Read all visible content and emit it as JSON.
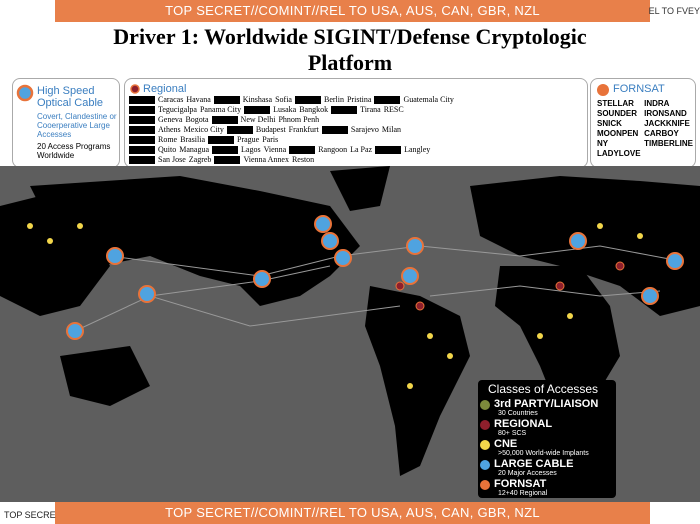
{
  "banner_top": "TOP SECRET//COMINT//REL TO USA, AUS, CAN, GBR, NZL",
  "banner_right": "EL TO FVEY",
  "title": "Driver 1:  Worldwide  SIGINT/Defense  Cryptologic Platform",
  "panels": {
    "cable": {
      "title": "High Speed Optical Cable",
      "description": "Covert, Clandestine or Cooerperative Large Accesses",
      "programs": "20 Access Programs Worldwide"
    },
    "regional": {
      "title": "Regional",
      "cities": [
        [
          "Caracas",
          "Havana",
          "Kinshasa",
          "Sofia",
          "Berlin",
          "Pristina",
          "Guatemala City"
        ],
        [
          "Tegucigalpa",
          "Panama City",
          "Lusaka",
          "Bangkok",
          "Tirana",
          "RESC"
        ],
        [
          "Geneva",
          "Bogota",
          "New Delhi",
          "Phnom Penh"
        ],
        [
          "Athens",
          "Mexico City",
          "Budapest",
          "Frankfurt",
          "Sarajevo",
          "Milan"
        ],
        [
          "Rome",
          "Brasilia",
          "Prague",
          "Paris"
        ],
        [
          "Quito",
          "Managua",
          "Lagos",
          "Vienna",
          "Rangoon",
          "La Paz",
          "Langley"
        ],
        [
          "San Jose",
          "Zagreb",
          "Vienna Annex",
          "Reston"
        ]
      ]
    },
    "fornsat": {
      "title": "FORNSAT",
      "sites": [
        "STELLAR",
        "SOUNDER",
        "SNICK",
        "MOONPEN",
        "NY",
        "LADYLOVE",
        "INDRA",
        "IRONSAND",
        "JACKKNIFE",
        "CARBOY",
        "TIMBERLINE"
      ]
    }
  },
  "legend": {
    "title": "Classes of Accesses",
    "items": [
      {
        "label": "3rd PARTY/LIAISON",
        "detail": "30 Countries",
        "color": "#7d8a3c"
      },
      {
        "label": "REGIONAL",
        "detail": "80+ SCS",
        "color": "#8e1f2c"
      },
      {
        "label": "CNE",
        "detail": ">50,000 World-wide Implants",
        "color": "#f2d64b"
      },
      {
        "label": "LARGE CABLE",
        "detail": "20 Major Accesses",
        "color": "#4fa3e0"
      },
      {
        "label": "FORNSAT",
        "detail": "12+40 Regional",
        "color": "#e8733a"
      }
    ]
  },
  "banner_bottom": "TOP SECRET//COMINT//REL TO USA, AUS, CAN, GBR, NZL",
  "footer_left": "TOP SECRE"
}
